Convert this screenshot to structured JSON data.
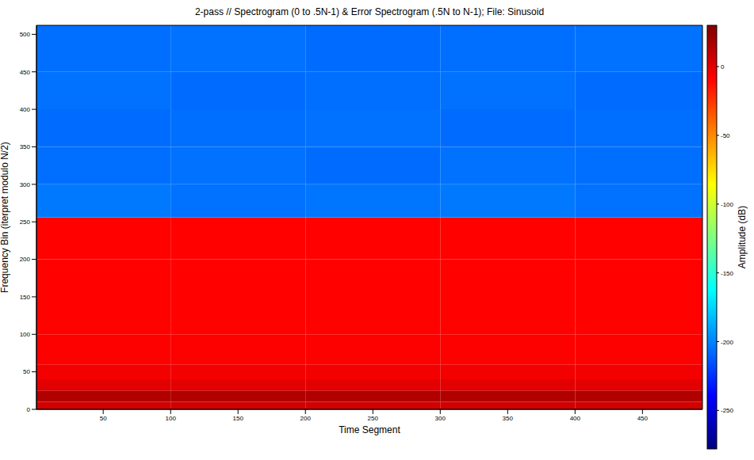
{
  "chart_data": {
    "type": "heatmap",
    "title": "2-pass // Spectrogram (0 to .5N-1) & Error Spectrogram (.5N to N-1); File: Sinusoid",
    "x_label": "Time Segment",
    "y_label": "Frequency Bin (iterpret modulo N/2)",
    "xlim": [
      0.5,
      494.5
    ],
    "xticks": [
      50,
      100,
      150,
      200,
      250,
      300,
      350,
      400,
      450
    ],
    "ylim": [
      0,
      512
    ],
    "yticks": [
      0,
      50,
      100,
      150,
      200,
      250,
      300,
      350,
      400,
      450,
      500
    ],
    "x_edges": [
      0.5,
      100,
      200,
      300,
      400,
      494.5
    ],
    "y_edges": [
      0,
      10,
      25,
      40,
      60,
      100,
      150,
      200,
      256,
      300,
      350,
      400,
      450,
      512
    ],
    "cells": [
      [
        5,
        5,
        5,
        5,
        5
      ],
      [
        15,
        15,
        15,
        15,
        15
      ],
      [
        0,
        0,
        0,
        0,
        0
      ],
      [
        -5,
        -5,
        -5,
        -5,
        -5
      ],
      [
        -8,
        -8,
        -8,
        -8,
        -8
      ],
      [
        -9,
        -9,
        -9,
        -9,
        -9
      ],
      [
        -9,
        -9,
        -9,
        -9,
        -9
      ],
      [
        -9,
        -9,
        -9,
        -9,
        -9
      ],
      [
        -203,
        -205,
        -204,
        -203,
        -205
      ],
      [
        -206,
        -205,
        -207,
        -205,
        -206
      ],
      [
        -207,
        -206,
        -205,
        -207,
        -206
      ],
      [
        -205,
        -207,
        -206,
        -205,
        -207
      ],
      [
        -206,
        -205,
        -207,
        -206,
        -205
      ]
    ],
    "colorbar_label": "Amplitude (dB)",
    "clim": [
      -278,
      30
    ],
    "cticks": [
      -250,
      -200,
      -150,
      -100,
      -50,
      0
    ]
  }
}
